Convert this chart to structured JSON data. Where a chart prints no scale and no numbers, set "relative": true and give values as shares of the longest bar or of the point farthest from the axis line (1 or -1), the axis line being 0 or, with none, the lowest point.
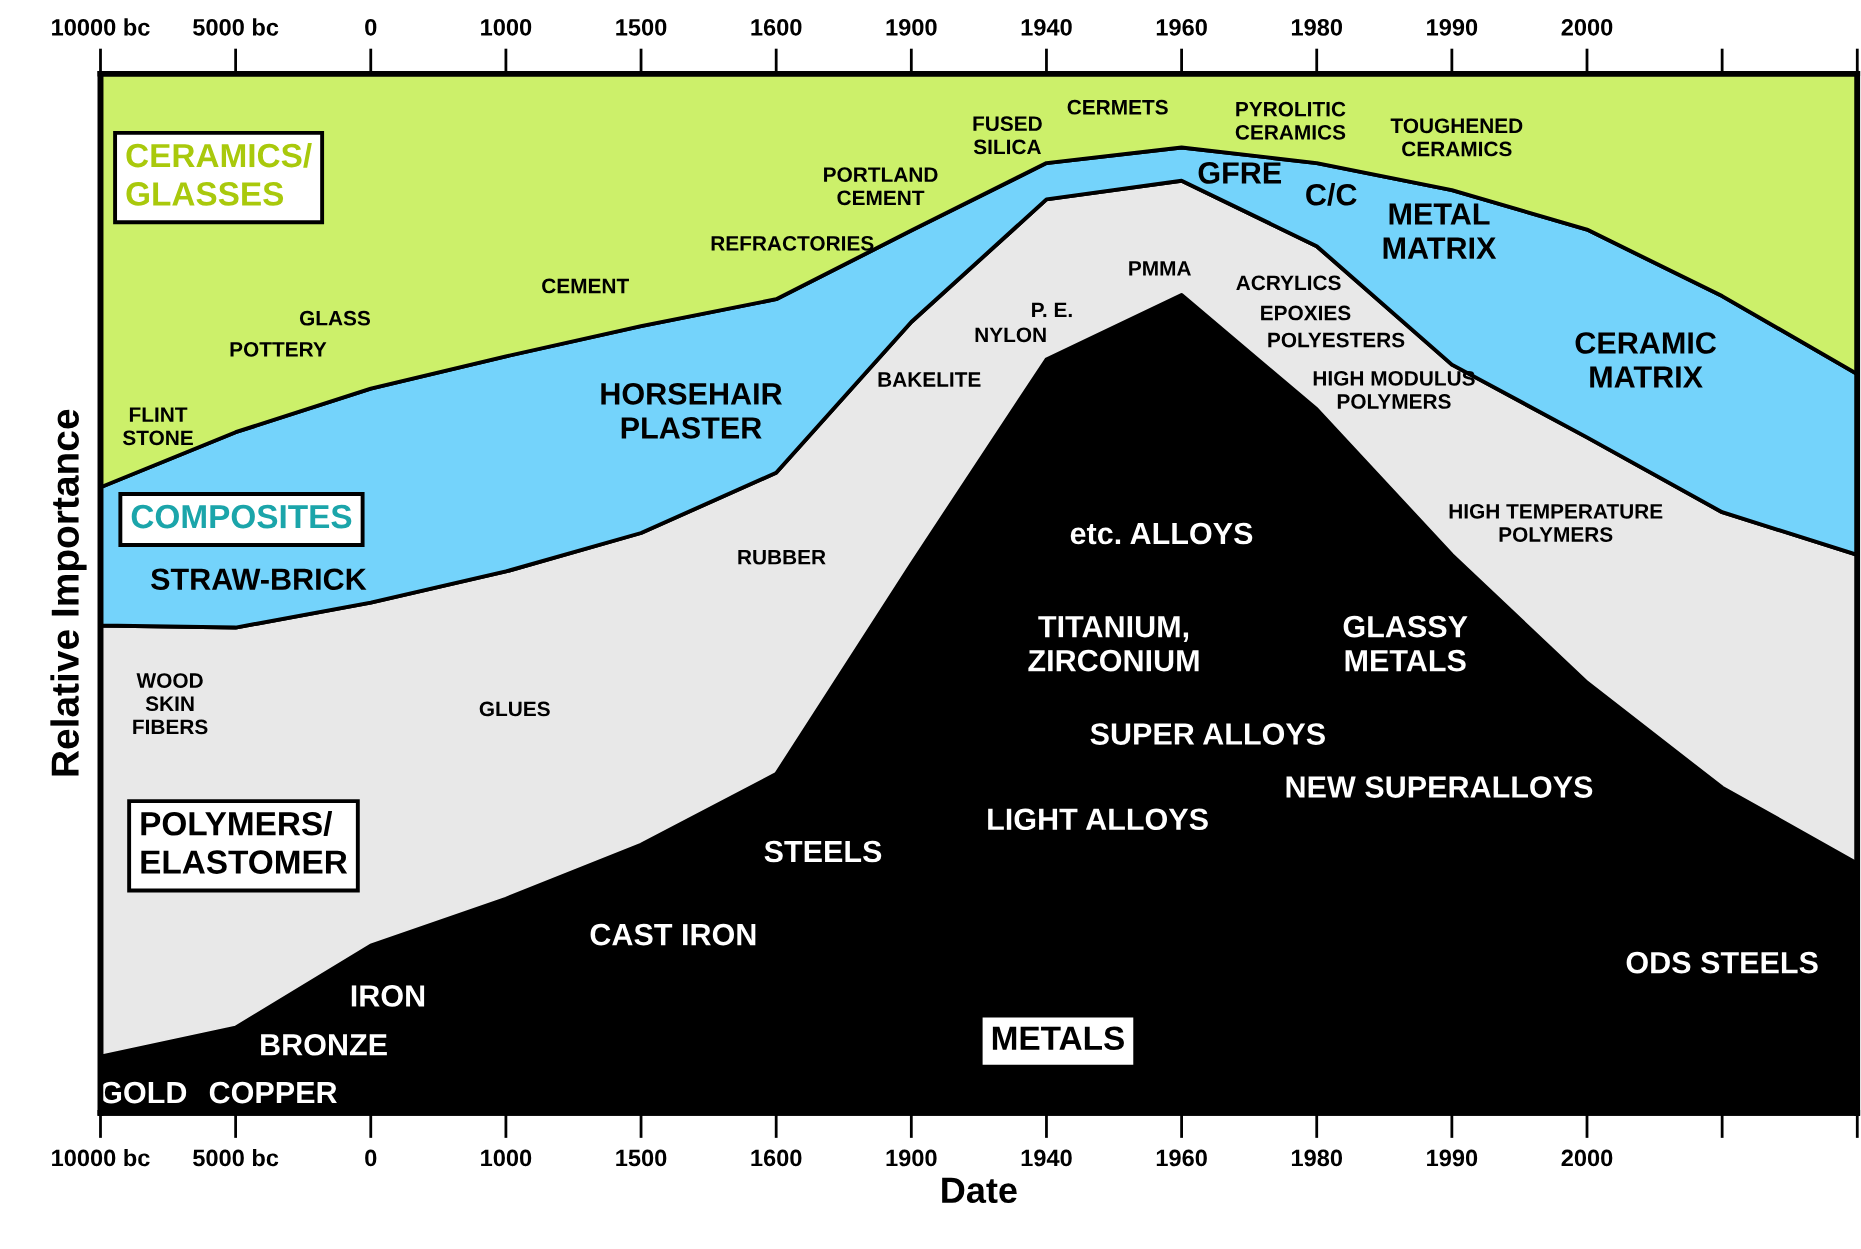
{
  "chart_data": {
    "type": "area",
    "stacked": true,
    "relative": true,
    "xlabel": "Date",
    "ylabel": "Relative Importance",
    "categories": [
      "10000 bc",
      "5000 bc",
      "0",
      "1000",
      "1500",
      "1600",
      "1900",
      "1940",
      "1960",
      "1980",
      "1990",
      "2000",
      null,
      null
    ],
    "series": [
      {
        "name": "METALS",
        "color": "#000000",
        "values": [
          0.054,
          0.082,
          0.161,
          0.206,
          0.258,
          0.326,
          0.528,
          0.725,
          0.787,
          0.677,
          0.537,
          0.414,
          0.313,
          0.24
        ]
      },
      {
        "name": "POLYMERS/\nELASTOMER",
        "color": "#e8e8e8",
        "values": [
          0.415,
          0.385,
          0.33,
          0.315,
          0.3,
          0.29,
          0.233,
          0.154,
          0.11,
          0.157,
          0.183,
          0.236,
          0.265,
          0.297
        ]
      },
      {
        "name": "COMPOSITES",
        "color": "#74d3fb",
        "values": [
          0.133,
          0.188,
          0.206,
          0.207,
          0.199,
          0.167,
          0.088,
          0.035,
          0.032,
          0.08,
          0.168,
          0.2,
          0.208,
          0.174
        ]
      },
      {
        "name": "CERAMICS/\nGLASSES",
        "color": "#ccf06a",
        "values": [
          0.398,
          0.345,
          0.303,
          0.272,
          0.243,
          0.217,
          0.151,
          0.086,
          0.071,
          0.086,
          0.112,
          0.15,
          0.214,
          0.289
        ]
      }
    ],
    "annotations": [
      "FLINT\nSTONE",
      "GLASS",
      "POTTERY",
      "CEMENT",
      "REFRACTORIES",
      "PORTLAND\nCEMENT",
      "FUSED\nSILICA",
      "CERMETS",
      "PYROLITIC\nCERAMICS",
      "TOUGHENED\nCERAMICS",
      "GFRE",
      "C/C",
      "METAL\nMATRIX",
      "CERAMIC\nMATRIX",
      "HORSEHAIR\nPLASTER",
      "STRAW-BRICK",
      "WOOD\nSKIN\nFIBERS",
      "GLUES",
      "RUBBER",
      "BAKELITE",
      "NYLON",
      "P. E.",
      "PMMA",
      "ACRYLICS",
      "EPOXIES",
      "POLYESTERS",
      "HIGH MODULUS\nPOLYMERS",
      "HIGH TEMPERATURE\nPOLYMERS",
      "etc. ALLOYS",
      "TITANIUM,\nZIRCONIUM",
      "GLASSY\nMETALS",
      "SUPER ALLOYS",
      "NEW SUPERALLOYS",
      "LIGHT ALLOYS",
      "STEELS",
      "CAST IRON",
      "IRON",
      "BRONZE",
      "GOLD",
      "COPPER",
      "ODS STEELS"
    ]
  }
}
